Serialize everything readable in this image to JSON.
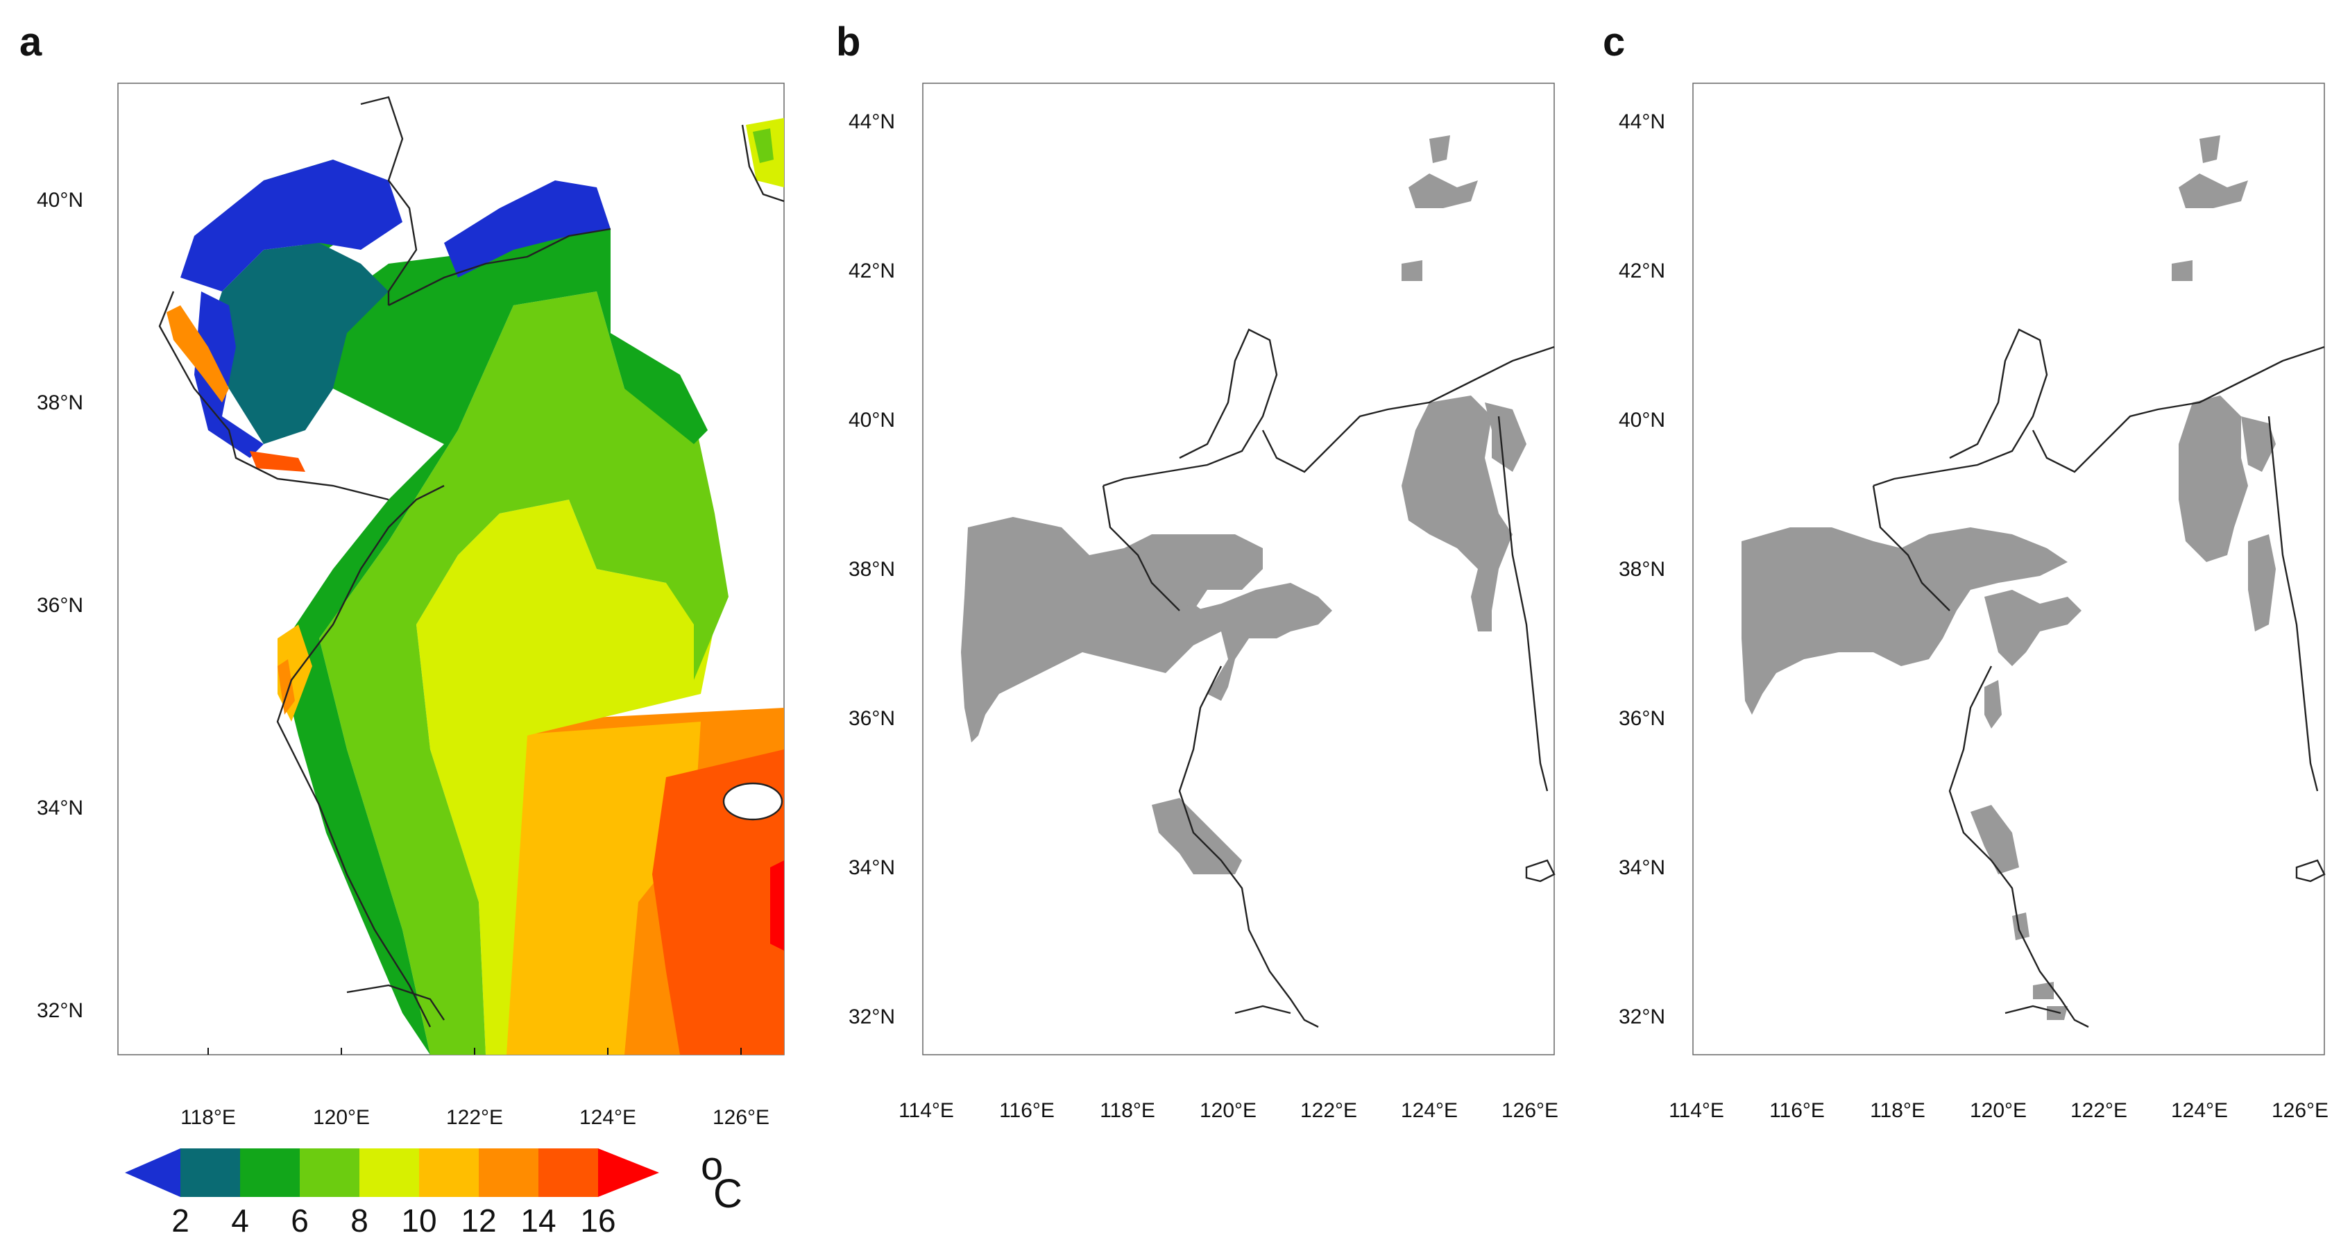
{
  "panels": [
    {
      "label": "a",
      "x_ticks": [
        "118°E",
        "120°E",
        "122°E",
        "124°E",
        "126°E"
      ],
      "y_ticks": [
        "40°N",
        "38°N",
        "36°N",
        "34°N",
        "32°N"
      ]
    },
    {
      "label": "b",
      "x_ticks": [
        "114°E",
        "116°E",
        "118°E",
        "120°E",
        "122°E",
        "124°E",
        "126°E"
      ],
      "y_ticks": [
        "44°N",
        "42°N",
        "40°N",
        "38°N",
        "36°N",
        "34°N",
        "32°N"
      ]
    },
    {
      "label": "c",
      "x_ticks": [
        "114°E",
        "116°E",
        "118°E",
        "120°E",
        "122°E",
        "124°E",
        "126°E"
      ],
      "y_ticks": [
        "44°N",
        "42°N",
        "40°N",
        "38°N",
        "36°N",
        "34°N",
        "32°N"
      ]
    }
  ],
  "colorbar": {
    "ticks": [
      "2",
      "4",
      "6",
      "8",
      "10",
      "12",
      "14",
      "16"
    ],
    "colors": [
      "#1a2fd1",
      "#0a6b73",
      "#12a61a",
      "#6ccc10",
      "#d7f000",
      "#ffbe00",
      "#ff8c00",
      "#ff5500",
      "#ff0000"
    ],
    "unit_sup": "o",
    "unit": "C"
  },
  "colors": {
    "land_mask": "#999999",
    "coastline": "#222222"
  }
}
